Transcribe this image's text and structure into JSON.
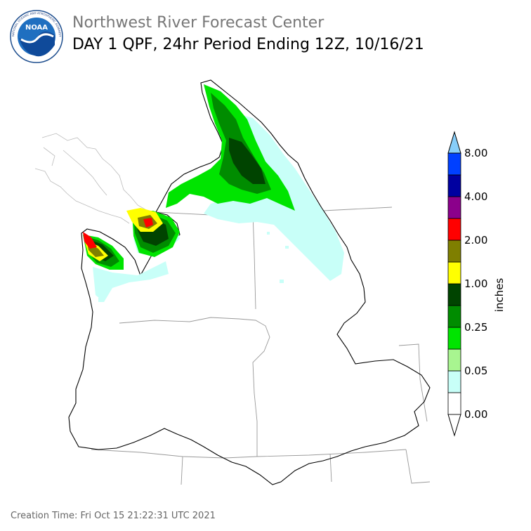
{
  "header": {
    "org": "Northwest River Forecast Center",
    "product": "DAY 1 QPF, 24hr Period Ending 12Z, 10/16/21",
    "logo_text": "NOAA",
    "logo_ring_text": "NATIONAL OCEANIC AND ATMOSPHERIC ADMINISTRATION · U.S. DEPARTMENT OF COMMERCE"
  },
  "legend": {
    "unit": "inches",
    "ticks": [
      "8.00",
      "4.00",
      "2.00",
      "1.00",
      "0.25",
      "0.05",
      "0.00"
    ],
    "colors": [
      "#ffffff",
      "#c8fff8",
      "#a8f590",
      "#00e400",
      "#008c00",
      "#004400",
      "#ffff00",
      "#7f7f00",
      "#ff0000",
      "#8b008b",
      "#0000a0",
      "#0040ff",
      "#87cefa"
    ]
  },
  "map": {
    "precip_colors": {
      "trace": "#c8fff8",
      "light": "#a8f590",
      "moderate": "#00e400",
      "heavy": "#008c00",
      "very_heavy": "#004400",
      "extreme": "#ffff00",
      "olive": "#7f7f00",
      "red": "#ff0000"
    }
  },
  "footer": {
    "creation_time": "Creation Time: Fri Oct 15 21:22:31 UTC 2021"
  }
}
